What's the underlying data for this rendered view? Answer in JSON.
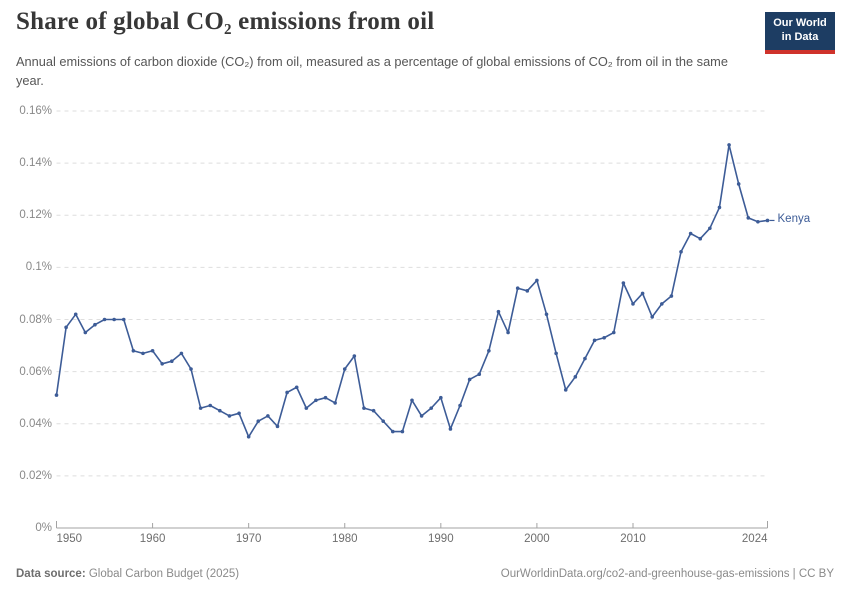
{
  "header": {
    "title": "Share of global CO₂ emissions from oil",
    "subtitle": "Annual emissions of carbon dioxide (CO₂) from oil, measured as a percentage of global emissions of CO₂ from oil in the same year.",
    "logo_line1": "Our World",
    "logo_line2": "in Data",
    "logo_bg_color": "#1d3d63",
    "logo_accent_color": "#cf322b"
  },
  "chart_data": {
    "type": "line",
    "title": "Share of global CO₂ emissions from oil",
    "xlabel": "",
    "ylabel": "",
    "unit": "%",
    "grid": "horizontal-dashed",
    "legend": "end-of-line-label",
    "ylim": [
      0,
      0.16
    ],
    "xlim": [
      1950,
      2024
    ],
    "yticks": [
      {
        "value": 0,
        "label": "0%"
      },
      {
        "value": 0.02,
        "label": "0.02%"
      },
      {
        "value": 0.04,
        "label": "0.04%"
      },
      {
        "value": 0.06,
        "label": "0.06%"
      },
      {
        "value": 0.08,
        "label": "0.08%"
      },
      {
        "value": 0.1,
        "label": "0.1%"
      },
      {
        "value": 0.12,
        "label": "0.12%"
      },
      {
        "value": 0.14,
        "label": "0.14%"
      },
      {
        "value": 0.16,
        "label": "0.16%"
      }
    ],
    "xticks": [
      {
        "value": 1950,
        "label": "1950"
      },
      {
        "value": 1960,
        "label": "1960"
      },
      {
        "value": 1970,
        "label": "1970"
      },
      {
        "value": 1980,
        "label": "1980"
      },
      {
        "value": 1990,
        "label": "1990"
      },
      {
        "value": 2000,
        "label": "2000"
      },
      {
        "value": 2010,
        "label": "2010"
      },
      {
        "value": 2024,
        "label": "2024"
      }
    ],
    "x": [
      1950,
      1951,
      1952,
      1953,
      1954,
      1955,
      1956,
      1957,
      1958,
      1959,
      1960,
      1961,
      1962,
      1963,
      1964,
      1965,
      1966,
      1967,
      1968,
      1969,
      1970,
      1971,
      1972,
      1973,
      1974,
      1975,
      1976,
      1977,
      1978,
      1979,
      1980,
      1981,
      1982,
      1983,
      1984,
      1985,
      1986,
      1987,
      1988,
      1989,
      1990,
      1991,
      1992,
      1993,
      1994,
      1995,
      1996,
      1997,
      1998,
      1999,
      2000,
      2001,
      2002,
      2003,
      2004,
      2005,
      2006,
      2007,
      2008,
      2009,
      2010,
      2011,
      2012,
      2013,
      2014,
      2015,
      2016,
      2017,
      2018,
      2019,
      2020,
      2021,
      2022,
      2023,
      2024
    ],
    "series": [
      {
        "name": "Kenya",
        "color": "#3d5c97",
        "values": [
          0.051,
          0.077,
          0.082,
          0.075,
          0.078,
          0.08,
          0.08,
          0.08,
          0.068,
          0.067,
          0.068,
          0.063,
          0.064,
          0.067,
          0.061,
          0.046,
          0.047,
          0.045,
          0.043,
          0.044,
          0.035,
          0.041,
          0.043,
          0.039,
          0.052,
          0.054,
          0.046,
          0.049,
          0.05,
          0.048,
          0.061,
          0.066,
          0.046,
          0.045,
          0.041,
          0.037,
          0.037,
          0.049,
          0.043,
          0.046,
          0.05,
          0.038,
          0.047,
          0.057,
          0.059,
          0.068,
          0.083,
          0.075,
          0.092,
          0.091,
          0.095,
          0.082,
          0.067,
          0.053,
          0.058,
          0.065,
          0.072,
          0.073,
          0.075,
          0.094,
          0.086,
          0.09,
          0.081,
          0.086,
          0.089,
          0.106,
          0.113,
          0.111,
          0.115,
          0.123,
          0.147,
          0.132,
          0.119,
          0.1175,
          0.118
        ]
      }
    ],
    "colors": {
      "gridline": "#dedede",
      "axis": "#a3a3a3",
      "tick_label": "#898989"
    }
  },
  "footer": {
    "source_label": "Data source:",
    "source_text": " Global Carbon Budget (2025)",
    "rights_text": "OurWorldinData.org/co2-and-greenhouse-gas-emissions | CC BY"
  }
}
